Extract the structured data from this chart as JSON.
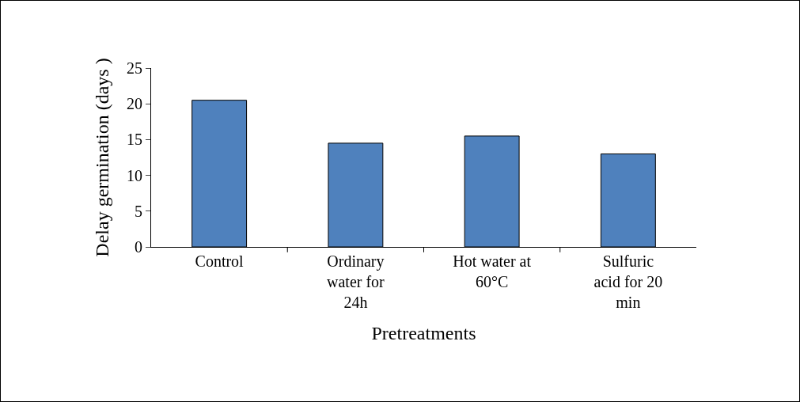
{
  "chart_data": {
    "type": "bar",
    "xlabel": "Pretreatments",
    "ylabel": "Delay germination (days )",
    "categories": [
      "Control",
      "Ordinary water for 24h",
      "Hot water at 60°C",
      "Sulfuric acid for 20 min"
    ],
    "values": [
      20.5,
      14.5,
      15.5,
      13
    ],
    "color": "#4f81bd",
    "ylim": [
      0,
      25
    ],
    "yticks": [
      0,
      5,
      10,
      15,
      20,
      25
    ],
    "grid": false
  }
}
